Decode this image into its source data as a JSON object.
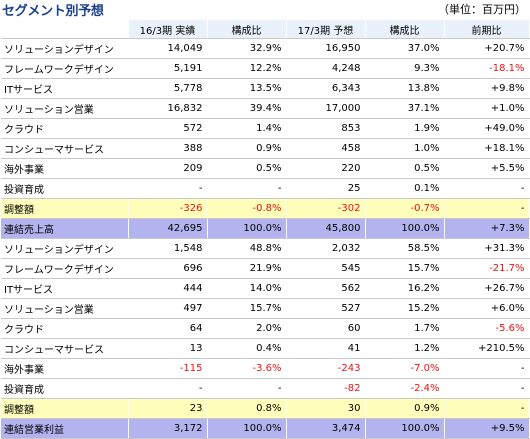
{
  "title": "セグメント別予想",
  "unit": "（単位：百万円）",
  "headers": [
    "",
    "16/3期 実績",
    "構成比",
    "17/3期 予想",
    "構成比",
    "前期比"
  ],
  "rows": [
    {
      "type": "normal",
      "name": "ソリューションデザイン",
      "actual": "14,049",
      "actual_ratio": "32.9%",
      "forecast": "16,950",
      "forecast_ratio": "37.0%",
      "yoy": "+20.7%"
    },
    {
      "type": "normal",
      "name": "フレームワークデザイン",
      "actual": "5,191",
      "actual_ratio": "12.2%",
      "forecast": "4,248",
      "forecast_ratio": "9.3%",
      "yoy": "-18.1%"
    },
    {
      "type": "normal",
      "name": "ITサービス",
      "actual": "5,778",
      "actual_ratio": "13.5%",
      "forecast": "6,343",
      "forecast_ratio": "13.8%",
      "yoy": "+9.8%"
    },
    {
      "type": "normal",
      "name": "ソリューション営業",
      "actual": "16,832",
      "actual_ratio": "39.4%",
      "forecast": "17,000",
      "forecast_ratio": "37.1%",
      "yoy": "+1.0%"
    },
    {
      "type": "normal",
      "name": "クラウド",
      "actual": "572",
      "actual_ratio": "1.4%",
      "forecast": "853",
      "forecast_ratio": "1.9%",
      "yoy": "+49.0%"
    },
    {
      "type": "normal",
      "name": "コンシューマサービス",
      "actual": "388",
      "actual_ratio": "0.9%",
      "forecast": "458",
      "forecast_ratio": "1.0%",
      "yoy": "+18.1%"
    },
    {
      "type": "normal",
      "name": "海外事業",
      "actual": "209",
      "actual_ratio": "0.5%",
      "forecast": "220",
      "forecast_ratio": "0.5%",
      "yoy": "+5.5%"
    },
    {
      "type": "normal",
      "name": "投資育成",
      "actual": "-",
      "actual_ratio": "-",
      "forecast": "25",
      "forecast_ratio": "0.1%",
      "yoy": "-"
    },
    {
      "type": "adj",
      "name": "調整額",
      "actual": "-326",
      "actual_ratio": "-0.8%",
      "forecast": "-302",
      "forecast_ratio": "-0.7%",
      "yoy": "-"
    },
    {
      "type": "total",
      "name": "連結売上高",
      "actual": "42,695",
      "actual_ratio": "100.0%",
      "forecast": "45,800",
      "forecast_ratio": "100.0%",
      "yoy": "+7.3%"
    },
    {
      "type": "normal",
      "name": "ソリューションデザイン",
      "actual": "1,548",
      "actual_ratio": "48.8%",
      "forecast": "2,032",
      "forecast_ratio": "58.5%",
      "yoy": "+31.3%"
    },
    {
      "type": "normal",
      "name": "フレームワークデザイン",
      "actual": "696",
      "actual_ratio": "21.9%",
      "forecast": "545",
      "forecast_ratio": "15.7%",
      "yoy": "-21.7%"
    },
    {
      "type": "normal",
      "name": "ITサービス",
      "actual": "444",
      "actual_ratio": "14.0%",
      "forecast": "562",
      "forecast_ratio": "16.2%",
      "yoy": "+26.7%"
    },
    {
      "type": "normal",
      "name": "ソリューション営業",
      "actual": "497",
      "actual_ratio": "15.7%",
      "forecast": "527",
      "forecast_ratio": "15.2%",
      "yoy": "+6.0%"
    },
    {
      "type": "normal",
      "name": "クラウド",
      "actual": "64",
      "actual_ratio": "2.0%",
      "forecast": "60",
      "forecast_ratio": "1.7%",
      "yoy": "-5.6%"
    },
    {
      "type": "normal",
      "name": "コンシューマサービス",
      "actual": "13",
      "actual_ratio": "0.4%",
      "forecast": "41",
      "forecast_ratio": "1.2%",
      "yoy": "+210.5%"
    },
    {
      "type": "normal",
      "name": "海外事業",
      "actual": "-115",
      "actual_ratio": "-3.6%",
      "forecast": "-243",
      "forecast_ratio": "-7.0%",
      "yoy": "-"
    },
    {
      "type": "normal",
      "name": "投資育成",
      "actual": "-",
      "actual_ratio": "-",
      "forecast": "-82",
      "forecast_ratio": "-2.4%",
      "yoy": "-"
    },
    {
      "type": "adj",
      "name": "調整額",
      "actual": "23",
      "actual_ratio": "0.8%",
      "forecast": "30",
      "forecast_ratio": "0.9%",
      "yoy": "-"
    },
    {
      "type": "total",
      "name": "連結営業利益",
      "actual": "3,172",
      "actual_ratio": "100.0%",
      "forecast": "3,474",
      "forecast_ratio": "100.0%",
      "yoy": "+9.5%"
    }
  ]
}
